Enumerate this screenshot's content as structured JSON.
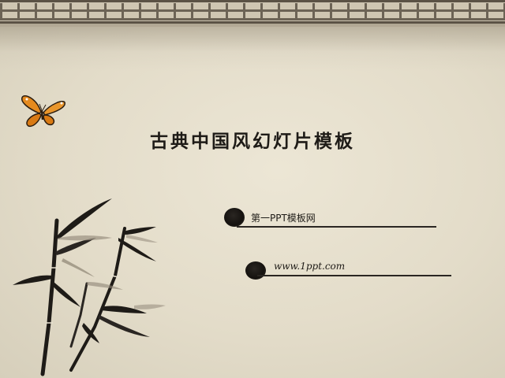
{
  "slide": {
    "title": "古典中国风幻灯片模板",
    "lines": [
      {
        "text": "第一PPT模板网"
      },
      {
        "text": "www.1ppt.com"
      }
    ]
  },
  "decor": {
    "border_icon": "lattice-border",
    "butterfly_icon": "butterfly-icon",
    "bamboo_icon": "bamboo-painting"
  },
  "colors": {
    "ink": "#1e1b17",
    "paper": "#e8e2d1",
    "butterfly_orange": "#e58a1f"
  }
}
